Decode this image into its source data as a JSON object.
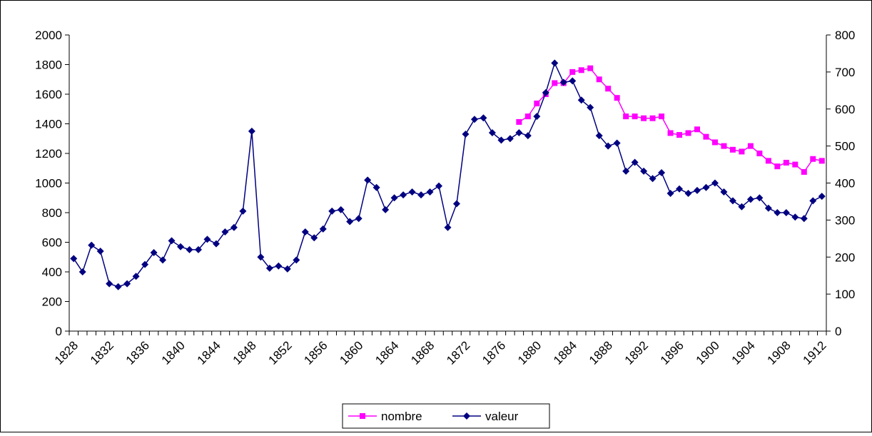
{
  "chart_data": {
    "type": "line",
    "categories": [
      "1828",
      null,
      null,
      null,
      "1832",
      null,
      null,
      null,
      "1836",
      null,
      null,
      null,
      "1840",
      null,
      null,
      null,
      "1844",
      null,
      null,
      null,
      "1848",
      null,
      null,
      null,
      "1852",
      null,
      null,
      null,
      "1856",
      null,
      null,
      null,
      "1860",
      null,
      null,
      null,
      "1864",
      null,
      null,
      null,
      "1868",
      null,
      null,
      null,
      "1872",
      null,
      null,
      null,
      "1876",
      null,
      null,
      null,
      "1880",
      null,
      null,
      null,
      "1884",
      null,
      null,
      null,
      "1888",
      null,
      null,
      null,
      "1892",
      null,
      null,
      null,
      "1896",
      null,
      null,
      null,
      "1900",
      null,
      null,
      null,
      "1904",
      null,
      null,
      null,
      "1908",
      null,
      null,
      null,
      "1912"
    ],
    "series": [
      {
        "name": "nombre",
        "color": "#ff00ff",
        "axis": "y2",
        "marker": "square",
        "values": [
          null,
          null,
          null,
          null,
          null,
          null,
          null,
          null,
          null,
          null,
          null,
          null,
          null,
          null,
          null,
          null,
          null,
          null,
          null,
          null,
          null,
          null,
          null,
          null,
          null,
          null,
          null,
          null,
          null,
          null,
          null,
          null,
          null,
          null,
          null,
          null,
          null,
          null,
          null,
          null,
          null,
          null,
          null,
          null,
          null,
          null,
          null,
          null,
          null,
          null,
          565,
          580,
          615,
          640,
          670,
          670,
          700,
          705,
          710,
          680,
          655,
          630,
          580,
          580,
          575,
          575,
          580,
          535,
          530,
          535,
          545,
          525,
          510,
          500,
          490,
          485,
          500,
          480,
          460,
          445,
          455,
          450,
          430,
          465,
          460
        ]
      },
      {
        "name": "valeur",
        "color": "#000080",
        "marker": "diamond",
        "values": [
          490,
          400,
          580,
          540,
          320,
          300,
          320,
          370,
          450,
          530,
          480,
          610,
          570,
          550,
          550,
          620,
          590,
          670,
          700,
          810,
          1350,
          500,
          425,
          440,
          420,
          480,
          670,
          630,
          690,
          810,
          820,
          740,
          760,
          1020,
          970,
          820,
          900,
          920,
          940,
          920,
          940,
          980,
          700,
          860,
          1330,
          1430,
          1440,
          1340,
          1290,
          1300,
          1340,
          1320,
          1450,
          1610,
          1810,
          1680,
          1690,
          1560,
          1510,
          1320,
          1250,
          1270,
          1080,
          1140,
          1080,
          1030,
          1070,
          930,
          960,
          930,
          950,
          970,
          1000,
          940,
          880,
          840,
          890,
          900,
          830,
          800,
          800,
          770,
          760,
          880,
          910
        ]
      }
    ],
    "ylim": [
      0,
      2000
    ],
    "yticks": [
      0,
      200,
      400,
      600,
      800,
      1000,
      1200,
      1400,
      1600,
      1800,
      2000
    ],
    "y2lim": [
      0,
      800
    ],
    "y2ticks": [
      0,
      100,
      200,
      300,
      400,
      500,
      600,
      700,
      800
    ],
    "grid": false,
    "legend": "bottom"
  }
}
